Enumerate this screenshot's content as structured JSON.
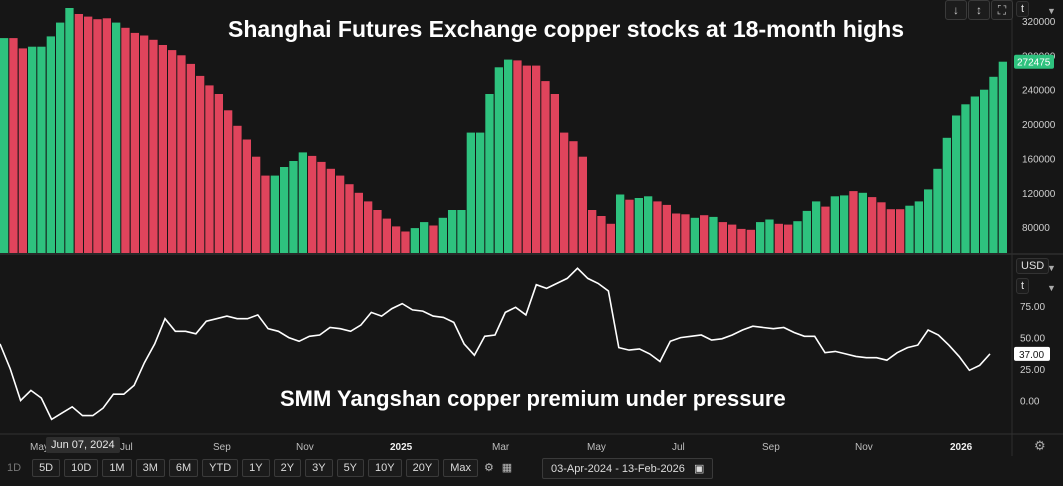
{
  "titles": {
    "top": "Shanghai Futures Exchange copper stocks at 18-month highs",
    "bottom": "SMM Yangshan copper premium under pressure"
  },
  "top_panel": {
    "unit": "t",
    "last_value_label": "272475",
    "icons": [
      "arrow-down-icon",
      "resize-icon",
      "expand-icon"
    ]
  },
  "bottom_panel": {
    "currency": "USD",
    "unit": "t",
    "last_value_label": "37.00"
  },
  "x_axis": {
    "ticks": [
      {
        "label": "May",
        "bold": false
      },
      {
        "label": "Jul",
        "bold": false
      },
      {
        "label": "Sep",
        "bold": false
      },
      {
        "label": "Nov",
        "bold": false
      },
      {
        "label": "2025",
        "bold": true
      },
      {
        "label": "Mar",
        "bold": false
      },
      {
        "label": "May",
        "bold": false
      },
      {
        "label": "Jul",
        "bold": false
      },
      {
        "label": "Sep",
        "bold": false
      },
      {
        "label": "Nov",
        "bold": false
      },
      {
        "label": "2026",
        "bold": true
      }
    ],
    "hover_date": "Jun 07, 2024"
  },
  "toolbar": {
    "periods": [
      "1D",
      "5D",
      "10D",
      "1M",
      "3M",
      "6M",
      "YTD",
      "1Y",
      "2Y",
      "3Y",
      "5Y",
      "10Y",
      "20Y",
      "Max"
    ],
    "date_range": "03-Apr-2024  -  13-Feb-2026"
  },
  "colors": {
    "up": "#2ec27e",
    "down": "#e0445c",
    "line": "#ffffff",
    "background": "#161616"
  },
  "chart_data": [
    {
      "type": "bar",
      "title": "Shanghai Futures Exchange copper stocks at 18-month highs",
      "ylabel": "t",
      "ylim": [
        50000,
        335000
      ],
      "yticks": [
        80000,
        120000,
        160000,
        200000,
        240000,
        280000,
        320000
      ],
      "ytick_labels": [
        "80000",
        "120000",
        "160000",
        "200000",
        "240000",
        "280000",
        "320000"
      ],
      "values": [
        300000,
        300000,
        288000,
        290000,
        290000,
        302000,
        318000,
        335000,
        328000,
        325000,
        322000,
        323000,
        318000,
        312000,
        306000,
        303000,
        298000,
        292000,
        286000,
        280000,
        270000,
        256000,
        245000,
        235000,
        216000,
        198000,
        182000,
        162000,
        140000,
        140000,
        150000,
        157000,
        167000,
        163000,
        156000,
        148000,
        140000,
        130000,
        120000,
        110000,
        100000,
        90000,
        81000,
        75000,
        79000,
        86000,
        82000,
        91000,
        100000,
        100000,
        190000,
        190000,
        235000,
        266000,
        275000,
        274000,
        268000,
        268000,
        250000,
        235000,
        190000,
        180000,
        162000,
        100000,
        93000,
        84000,
        118000,
        112000,
        114000,
        116000,
        110000,
        106000,
        96000,
        95000,
        91000,
        94000,
        92000,
        86000,
        83000,
        78000,
        77000,
        86000,
        89000,
        84000,
        83000,
        87000,
        99000,
        110000,
        104000,
        116000,
        117000,
        122000,
        120000,
        115000,
        109000,
        101000,
        101000,
        105000,
        110000,
        124000,
        148000,
        184000,
        210000,
        223000,
        232000,
        240000,
        255000,
        272475
      ],
      "up": [
        true,
        false,
        false,
        true,
        true,
        true,
        true,
        true,
        false,
        false,
        false,
        false,
        true,
        false,
        false,
        false,
        false,
        false,
        false,
        false,
        false,
        false,
        false,
        false,
        false,
        false,
        false,
        false,
        false,
        true,
        true,
        true,
        true,
        false,
        false,
        false,
        false,
        false,
        false,
        false,
        false,
        false,
        false,
        false,
        true,
        true,
        false,
        true,
        true,
        true,
        true,
        true,
        true,
        true,
        true,
        false,
        false,
        false,
        false,
        false,
        false,
        false,
        false,
        false,
        false,
        false,
        true,
        false,
        true,
        true,
        false,
        false,
        false,
        false,
        true,
        false,
        true,
        false,
        false,
        false,
        false,
        true,
        true,
        false,
        false,
        true,
        true,
        true,
        false,
        true,
        true,
        false,
        true,
        false,
        false,
        false,
        false,
        true,
        true,
        true,
        true,
        true,
        true,
        true,
        true,
        true,
        true,
        true
      ]
    },
    {
      "type": "line",
      "title": "SMM Yangshan copper premium under pressure",
      "ylabel": "USD / t",
      "ylim": [
        -25,
        110
      ],
      "yticks": [
        0,
        25,
        50,
        75
      ],
      "ytick_labels": [
        "0.00",
        "25.00",
        "50.00",
        "75.00"
      ],
      "values": [
        45,
        25,
        0,
        8,
        2,
        -15,
        -10,
        -5,
        -12,
        -12,
        -6,
        5,
        5,
        12,
        30,
        45,
        65,
        55,
        55,
        53,
        63,
        65,
        67,
        65,
        65,
        68,
        57,
        55,
        50,
        47,
        51,
        52,
        58,
        57,
        55,
        60,
        70,
        67,
        73,
        77,
        72,
        71,
        67,
        66,
        62,
        45,
        36,
        51,
        52,
        70,
        74,
        68,
        92,
        89,
        93,
        97,
        105,
        97,
        93,
        87,
        42,
        40,
        41,
        37,
        31,
        47,
        50,
        51,
        52,
        48,
        49,
        52,
        56,
        59,
        58,
        57,
        58,
        54,
        51,
        51,
        38,
        39,
        37,
        35,
        34,
        34,
        32,
        38,
        42,
        44,
        56,
        52,
        44,
        35,
        24,
        28,
        37
      ]
    }
  ]
}
